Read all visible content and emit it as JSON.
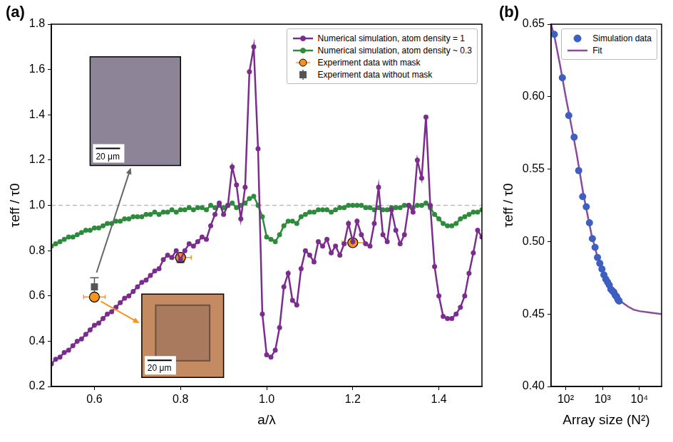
{
  "chart_data": [
    {
      "type": "scatter",
      "title": "(a)",
      "x_label": "a/λ",
      "y_label": "τeff / τ0",
      "xlim": [
        0.5,
        1.5
      ],
      "ylim": [
        0.2,
        1.8
      ],
      "xticks": [
        0.6,
        0.8,
        {
          "value": 1,
          "label": "1.0"
        },
        1.2,
        1.4
      ],
      "yticks": [
        0.2,
        0.4,
        0.6,
        0.8,
        {
          "value": 1,
          "label": "1.0"
        },
        1.2,
        1.4,
        1.6,
        1.8
      ],
      "grid": false,
      "legend": "upper right",
      "reference_y": 1,
      "annotations": [
        "20 μm",
        "20 μm"
      ],
      "series": [
        {
          "name": "Numerical simulation, atom density = 1",
          "type": "line",
          "color": "#7b2d8e",
          "marker": "circle",
          "line_style": "solid",
          "x": [
            0.5,
            0.51,
            0.52,
            0.53,
            0.54,
            0.55,
            0.56,
            0.57,
            0.58,
            0.59,
            0.6,
            0.61,
            0.62,
            0.63,
            0.64,
            0.65,
            0.66,
            0.67,
            0.68,
            0.69,
            0.7,
            0.71,
            0.72,
            0.73,
            0.74,
            0.75,
            0.76,
            0.77,
            0.78,
            0.79,
            0.8,
            0.81,
            0.82,
            0.83,
            0.84,
            0.85,
            0.86,
            0.87,
            0.88,
            0.89,
            0.9,
            0.91,
            0.92,
            0.93,
            0.94,
            0.95,
            0.96,
            0.97,
            0.98,
            0.99,
            1.0,
            1.01,
            1.02,
            1.03,
            1.04,
            1.05,
            1.06,
            1.07,
            1.08,
            1.09,
            1.1,
            1.11,
            1.12,
            1.13,
            1.14,
            1.15,
            1.16,
            1.17,
            1.18,
            1.19,
            1.2,
            1.21,
            1.22,
            1.23,
            1.24,
            1.25,
            1.26,
            1.27,
            1.28,
            1.29,
            1.3,
            1.31,
            1.32,
            1.33,
            1.34,
            1.35,
            1.36,
            1.37,
            1.38,
            1.39,
            1.4,
            1.41,
            1.42,
            1.43,
            1.44,
            1.45,
            1.46,
            1.47,
            1.48,
            1.49,
            1.5
          ],
          "values": [
            0.3,
            0.32,
            0.33,
            0.35,
            0.36,
            0.38,
            0.4,
            0.41,
            0.43,
            0.45,
            0.47,
            0.48,
            0.5,
            0.52,
            0.53,
            0.55,
            0.57,
            0.59,
            0.6,
            0.62,
            0.64,
            0.66,
            0.67,
            0.69,
            0.71,
            0.72,
            0.76,
            0.78,
            0.77,
            0.8,
            0.76,
            0.8,
            0.83,
            0.82,
            0.84,
            0.86,
            0.85,
            0.91,
            0.96,
            1.01,
            0.96,
            1.0,
            1.17,
            1.09,
            0.94,
            1.08,
            1.59,
            1.7,
            1.25,
            0.52,
            0.34,
            0.33,
            0.36,
            0.46,
            0.64,
            0.7,
            0.58,
            0.56,
            0.72,
            0.8,
            0.78,
            0.75,
            0.84,
            0.82,
            0.85,
            0.79,
            0.82,
            0.78,
            0.83,
            0.92,
            0.84,
            0.93,
            0.87,
            0.83,
            0.82,
            0.92,
            1.08,
            0.87,
            0.84,
            0.98,
            0.89,
            0.83,
            0.87,
            1.0,
            0.97,
            1.2,
            1.12,
            1.39,
            1.0,
            0.73,
            0.6,
            0.51,
            0.5,
            0.5,
            0.52,
            0.55,
            0.6,
            0.7,
            0.79,
            0.89,
            0.86
          ]
        },
        {
          "name": "Numerical simulation, atom density ~ 0.3",
          "type": "line",
          "color": "#2e8b3c",
          "marker": "circle",
          "line_style": "solid",
          "x": [
            0.5,
            0.51,
            0.52,
            0.53,
            0.54,
            0.55,
            0.56,
            0.57,
            0.58,
            0.59,
            0.6,
            0.61,
            0.62,
            0.63,
            0.64,
            0.65,
            0.66,
            0.67,
            0.68,
            0.69,
            0.7,
            0.71,
            0.72,
            0.73,
            0.74,
            0.75,
            0.76,
            0.77,
            0.78,
            0.79,
            0.8,
            0.81,
            0.82,
            0.83,
            0.84,
            0.85,
            0.86,
            0.87,
            0.88,
            0.89,
            0.9,
            0.91,
            0.92,
            0.93,
            0.94,
            0.95,
            0.96,
            0.97,
            0.98,
            0.99,
            1.0,
            1.01,
            1.02,
            1.03,
            1.04,
            1.05,
            1.06,
            1.07,
            1.08,
            1.09,
            1.1,
            1.11,
            1.12,
            1.13,
            1.14,
            1.15,
            1.16,
            1.17,
            1.18,
            1.19,
            1.2,
            1.21,
            1.22,
            1.23,
            1.24,
            1.25,
            1.26,
            1.27,
            1.28,
            1.29,
            1.3,
            1.31,
            1.32,
            1.33,
            1.34,
            1.35,
            1.36,
            1.37,
            1.38,
            1.39,
            1.4,
            1.41,
            1.42,
            1.43,
            1.44,
            1.45,
            1.46,
            1.47,
            1.48,
            1.49,
            1.5
          ],
          "values": [
            0.82,
            0.83,
            0.84,
            0.85,
            0.86,
            0.86,
            0.87,
            0.88,
            0.89,
            0.89,
            0.9,
            0.9,
            0.91,
            0.92,
            0.92,
            0.93,
            0.93,
            0.94,
            0.94,
            0.95,
            0.95,
            0.95,
            0.96,
            0.96,
            0.97,
            0.96,
            0.97,
            0.97,
            0.98,
            0.97,
            0.98,
            0.98,
            0.99,
            0.98,
            0.99,
            0.99,
            0.98,
            1.0,
            0.99,
            1.0,
            0.99,
            1.0,
            1.01,
            0.99,
            1.0,
            1.01,
            1.03,
            1.04,
            1.0,
            0.95,
            0.86,
            0.85,
            0.84,
            0.87,
            0.91,
            0.93,
            0.93,
            0.92,
            0.95,
            0.96,
            0.97,
            0.97,
            0.98,
            0.98,
            0.98,
            0.97,
            0.98,
            0.99,
            0.99,
            1.0,
            1.0,
            1.0,
            1.0,
            0.99,
            0.99,
            0.98,
            0.99,
            0.98,
            0.98,
            0.99,
            0.99,
            0.99,
            1.0,
            1.0,
            0.99,
            1.0,
            1.0,
            1.01,
            0.99,
            0.96,
            0.94,
            0.92,
            0.91,
            0.91,
            0.92,
            0.94,
            0.95,
            0.96,
            0.97,
            0.97,
            0.98
          ]
        },
        {
          "name": "Experiment data with mask",
          "type": "scatter",
          "color": "#f7941d",
          "marker": "circle",
          "x": [
            0.6,
            0.8,
            1.2
          ],
          "values": [
            0.595,
            0.77,
            0.835
          ],
          "x_error": [
            0.025,
            0.025,
            0.025
          ],
          "y_error": [
            0.01,
            0.01,
            0.01
          ]
        },
        {
          "name": "Experiment data without mask",
          "type": "scatter",
          "color": "#555555",
          "marker": "square",
          "x": [
            0.6,
            0.8
          ],
          "values": [
            0.64,
            0.76
          ],
          "y_error": [
            0.04,
            0.01
          ]
        }
      ]
    },
    {
      "type": "scatter",
      "title": "(b)",
      "x_label": "Array size (N²)",
      "y_label": "τeff / τ0",
      "log": "x",
      "xlim": [
        40,
        40000
      ],
      "ylim": [
        0.4,
        0.65
      ],
      "xticks": [
        {
          "value": 100,
          "label": "10²"
        },
        {
          "value": 1000,
          "label": "10³"
        },
        {
          "value": 10000,
          "label": "10⁴"
        }
      ],
      "yticks": [
        {
          "value": 0.4,
          "label": "0.40"
        },
        0.45,
        {
          "value": 0.5,
          "label": "0.50"
        },
        0.55,
        {
          "value": 0.6,
          "label": "0.60"
        },
        0.65
      ],
      "grid": false,
      "legend": "upper right",
      "series": [
        {
          "name": "Simulation data",
          "type": "scatter",
          "color": "#3c5fc0",
          "marker": "circle",
          "x": [
            49,
            81,
            121,
            169,
            225,
            289,
            361,
            441,
            529,
            625,
            729,
            841,
            961,
            1089,
            1225,
            1369,
            1521,
            1681,
            1849,
            2025,
            2209,
            2401,
            2601,
            2809
          ],
          "values": [
            0.643,
            0.613,
            0.587,
            0.572,
            0.549,
            0.531,
            0.524,
            0.513,
            0.502,
            0.496,
            0.489,
            0.485,
            0.481,
            0.477,
            0.474,
            0.472,
            0.47,
            0.467,
            0.466,
            0.465,
            0.463,
            0.462,
            0.46,
            0.459
          ]
        },
        {
          "name": "Fit",
          "type": "line",
          "color": "#8b4a9c",
          "marker": "none",
          "line_style": "solid",
          "x": [
            40,
            50,
            70,
            100,
            150,
            200,
            300,
            500,
            700,
            1000,
            1500,
            2000,
            3000,
            5000,
            7000,
            10000,
            20000,
            40000
          ],
          "values": [
            0.65,
            0.641,
            0.622,
            0.6,
            0.577,
            0.56,
            0.533,
            0.505,
            0.491,
            0.48,
            0.47,
            0.465,
            0.459,
            0.455,
            0.453,
            0.452,
            0.451,
            0.45
          ]
        }
      ]
    }
  ]
}
